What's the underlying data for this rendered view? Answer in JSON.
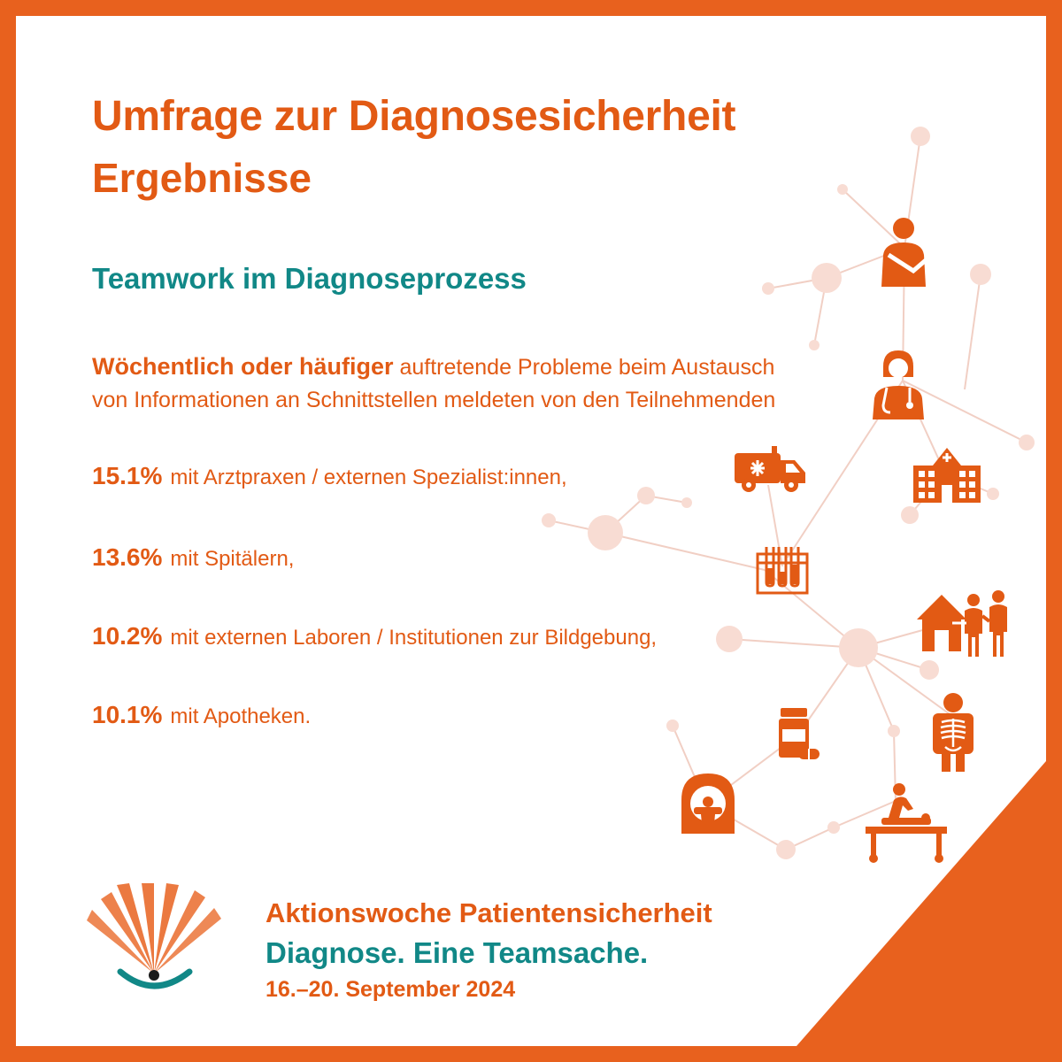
{
  "header": {
    "title": "Umfrage zur Diagnosesicherheit",
    "subtitle": "Ergebnisse"
  },
  "section": {
    "heading": "Teamwork im Diagnoseprozess"
  },
  "intro": {
    "emphasis": "Wöchentlich oder häufiger",
    "line1_rest": "auftretende Probleme beim Austausch",
    "line2": "von Informationen an Schnittstellen meldeten von den Teilnehmenden"
  },
  "stats": [
    {
      "value": "15.1%",
      "label": "mit Arztpraxen / externen Spezialist:innen,"
    },
    {
      "value": "13.6%",
      "label": "mit Spitälern,"
    },
    {
      "value": "10.2%",
      "label": "mit externen Laboren / Institutionen zur Bildgebung,"
    },
    {
      "value": "10.1%",
      "label": "mit Apotheken."
    }
  ],
  "footer": {
    "campaign": "Aktionswoche Patientensicherheit",
    "slogan": "Diagnose. Eine Teamsache.",
    "dates": "16.–20. September 2024"
  },
  "colors": {
    "accent_orange": "#e25a14",
    "frame_orange": "#e8611e",
    "teal": "#118887",
    "node_pink": "#f8dcd3"
  },
  "icons": [
    "patient-arm-sling-icon",
    "doctor-stethoscope-icon",
    "ambulance-icon",
    "hospital-icon",
    "test-tubes-icon",
    "home-care-icon",
    "pill-bottle-icon",
    "xray-icon",
    "mri-scanner-icon",
    "physiotherapy-bed-icon",
    "campaign-logo-icon"
  ]
}
